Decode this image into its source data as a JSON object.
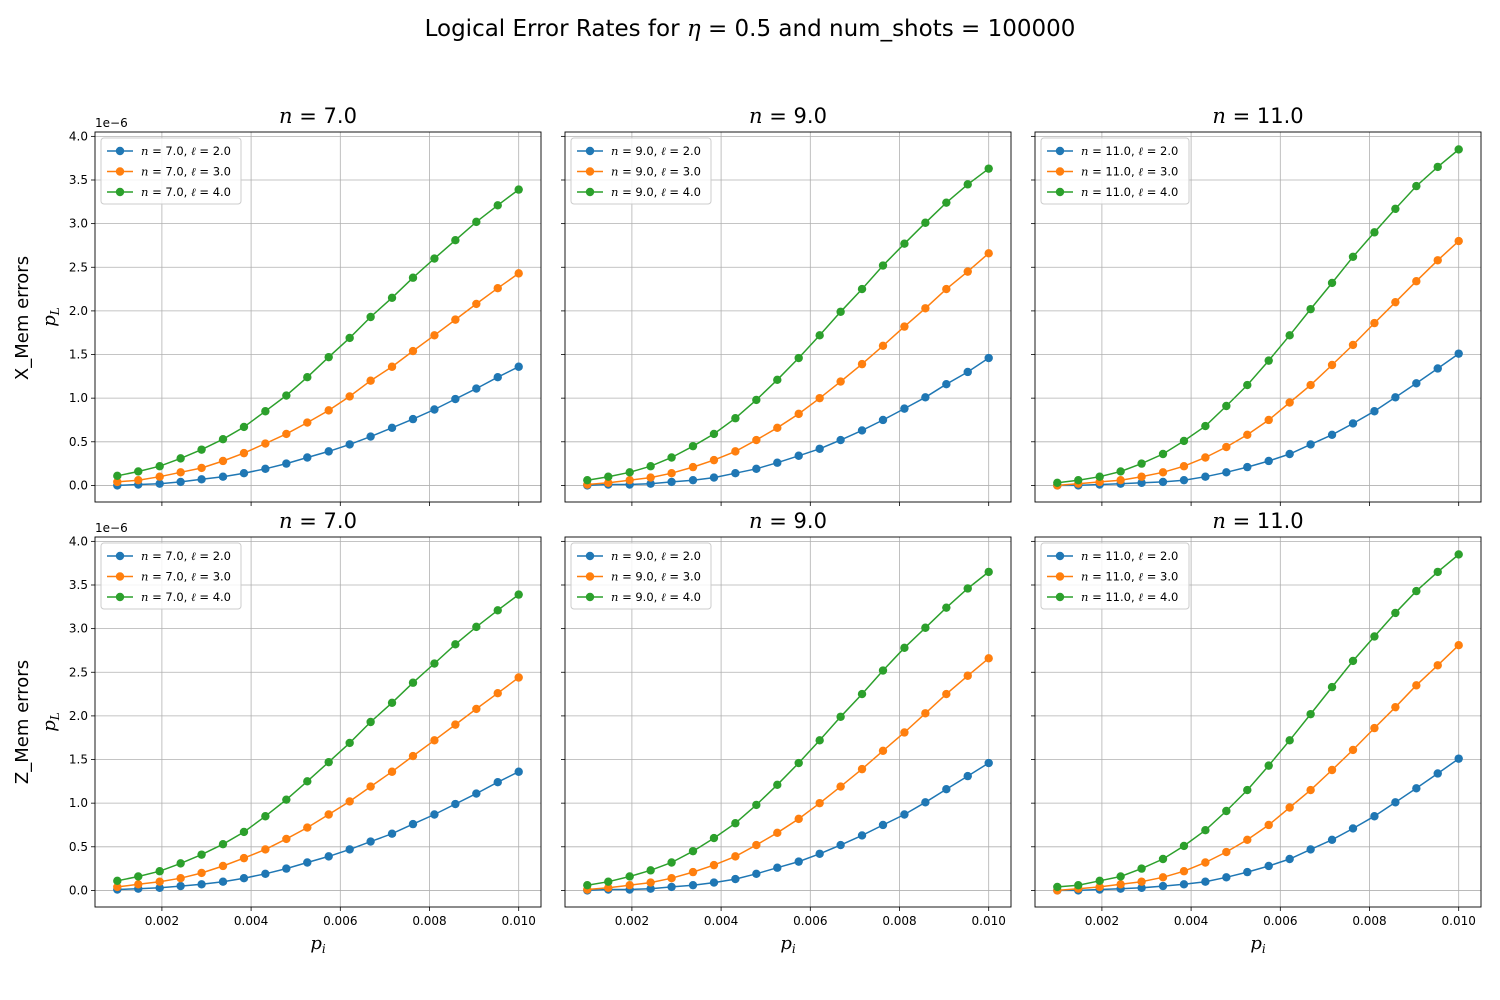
{
  "figure": {
    "title": {
      "prefix": "Logical Error Rates for ",
      "eta_symbol": "η",
      "eta_value": " = 0.5",
      "suffix": " and num_shots = 100000"
    },
    "row_labels": [
      "X_Mem errors",
      "Z_Mem errors"
    ],
    "colors": {
      "l2": "#1f77b4",
      "l3": "#ff7f0e",
      "l4": "#2ca02c",
      "grid": "#b0b0b0"
    }
  },
  "chart_data": [
    {
      "type": "line",
      "row": "X_Mem errors",
      "title_var": "n",
      "title_value": "7.0",
      "xlabel": "p_i",
      "ylabel": "p_L",
      "y_offset_text": "1e−6",
      "xlim": [
        0.0005,
        0.0105
      ],
      "ylim": [
        -0.19,
        4.05
      ],
      "xticks": [
        "0.002",
        "0.004",
        "0.006",
        "0.008",
        "0.010"
      ],
      "yticks": [
        "0.0",
        "0.5",
        "1.0",
        "1.5",
        "2.0",
        "2.5",
        "3.0",
        "3.5",
        "4.0"
      ],
      "grid": true,
      "legend_position": "upper-left",
      "x": [
        0.001,
        0.00147,
        0.00195,
        0.00242,
        0.00289,
        0.00337,
        0.00384,
        0.00432,
        0.00479,
        0.00526,
        0.00574,
        0.00621,
        0.00668,
        0.00716,
        0.00763,
        0.00811,
        0.00858,
        0.00905,
        0.00953,
        0.01
      ],
      "series": [
        {
          "n": "7.0",
          "l": "2.0",
          "values": [
            0.0,
            0.01,
            0.02,
            0.04,
            0.07,
            0.1,
            0.14,
            0.19,
            0.25,
            0.32,
            0.39,
            0.47,
            0.56,
            0.66,
            0.76,
            0.87,
            0.99,
            1.11,
            1.24,
            1.36
          ]
        },
        {
          "n": "7.0",
          "l": "3.0",
          "values": [
            0.04,
            0.06,
            0.1,
            0.15,
            0.2,
            0.28,
            0.37,
            0.48,
            0.59,
            0.72,
            0.86,
            1.02,
            1.2,
            1.36,
            1.54,
            1.72,
            1.9,
            2.08,
            2.26,
            2.43
          ]
        },
        {
          "n": "7.0",
          "l": "4.0",
          "values": [
            0.11,
            0.16,
            0.22,
            0.31,
            0.41,
            0.53,
            0.67,
            0.85,
            1.03,
            1.24,
            1.47,
            1.69,
            1.93,
            2.15,
            2.38,
            2.6,
            2.81,
            3.02,
            3.21,
            3.39
          ]
        }
      ]
    },
    {
      "type": "line",
      "row": "X_Mem errors",
      "title_var": "n",
      "title_value": "9.0",
      "xlabel": "p_i",
      "ylabel": "p_L",
      "xlim": [
        0.0005,
        0.0105
      ],
      "ylim": [
        -0.19,
        4.05
      ],
      "xticks": [
        "0.002",
        "0.004",
        "0.006",
        "0.008",
        "0.010"
      ],
      "grid": true,
      "legend_position": "upper-left",
      "x": [
        0.001,
        0.00147,
        0.00195,
        0.00242,
        0.00289,
        0.00337,
        0.00384,
        0.00432,
        0.00479,
        0.00526,
        0.00574,
        0.00621,
        0.00668,
        0.00716,
        0.00763,
        0.00811,
        0.00858,
        0.00905,
        0.00953,
        0.01
      ],
      "series": [
        {
          "n": "9.0",
          "l": "2.0",
          "values": [
            0.0,
            0.01,
            0.01,
            0.02,
            0.04,
            0.06,
            0.09,
            0.14,
            0.19,
            0.26,
            0.34,
            0.42,
            0.52,
            0.63,
            0.75,
            0.88,
            1.01,
            1.16,
            1.3,
            1.46
          ]
        },
        {
          "n": "9.0",
          "l": "3.0",
          "values": [
            0.01,
            0.03,
            0.06,
            0.09,
            0.14,
            0.21,
            0.29,
            0.39,
            0.52,
            0.66,
            0.82,
            1.0,
            1.19,
            1.39,
            1.6,
            1.82,
            2.03,
            2.25,
            2.45,
            2.66
          ]
        },
        {
          "n": "9.0",
          "l": "4.0",
          "values": [
            0.06,
            0.1,
            0.15,
            0.22,
            0.32,
            0.45,
            0.59,
            0.77,
            0.98,
            1.21,
            1.46,
            1.72,
            1.99,
            2.25,
            2.52,
            2.77,
            3.01,
            3.24,
            3.45,
            3.63
          ]
        }
      ]
    },
    {
      "type": "line",
      "row": "X_Mem errors",
      "title_var": "n",
      "title_value": "11.0",
      "xlabel": "p_i",
      "ylabel": "p_L",
      "xlim": [
        0.0005,
        0.0105
      ],
      "ylim": [
        -0.19,
        4.05
      ],
      "xticks": [
        "0.002",
        "0.004",
        "0.006",
        "0.008",
        "0.010"
      ],
      "grid": true,
      "legend_position": "upper-left",
      "x": [
        0.001,
        0.00147,
        0.00195,
        0.00242,
        0.00289,
        0.00337,
        0.00384,
        0.00432,
        0.00479,
        0.00526,
        0.00574,
        0.00621,
        0.00668,
        0.00716,
        0.00763,
        0.00811,
        0.00858,
        0.00905,
        0.00953,
        0.01
      ],
      "series": [
        {
          "n": "11.0",
          "l": "2.0",
          "values": [
            0.0,
            0.0,
            0.01,
            0.02,
            0.03,
            0.04,
            0.06,
            0.1,
            0.15,
            0.21,
            0.28,
            0.36,
            0.47,
            0.58,
            0.71,
            0.85,
            1.01,
            1.17,
            1.34,
            1.51
          ]
        },
        {
          "n": "11.0",
          "l": "3.0",
          "values": [
            0.0,
            0.02,
            0.04,
            0.06,
            0.1,
            0.15,
            0.22,
            0.32,
            0.44,
            0.58,
            0.75,
            0.95,
            1.15,
            1.38,
            1.61,
            1.86,
            2.1,
            2.34,
            2.58,
            2.8
          ]
        },
        {
          "n": "11.0",
          "l": "4.0",
          "values": [
            0.03,
            0.06,
            0.1,
            0.16,
            0.25,
            0.36,
            0.51,
            0.68,
            0.91,
            1.15,
            1.43,
            1.72,
            2.02,
            2.32,
            2.62,
            2.9,
            3.17,
            3.43,
            3.65,
            3.85
          ]
        }
      ]
    },
    {
      "type": "line",
      "row": "Z_Mem errors",
      "title_var": "n",
      "title_value": "7.0",
      "xlabel": "p_i",
      "ylabel": "p_L",
      "y_offset_text": "1e−6",
      "xlim": [
        0.0005,
        0.0105
      ],
      "ylim": [
        -0.19,
        4.05
      ],
      "xticks": [
        "0.002",
        "0.004",
        "0.006",
        "0.008",
        "0.010"
      ],
      "yticks": [
        "0.0",
        "0.5",
        "1.0",
        "1.5",
        "2.0",
        "2.5",
        "3.0",
        "3.5",
        "4.0"
      ],
      "grid": true,
      "legend_position": "upper-left",
      "x": [
        0.001,
        0.00147,
        0.00195,
        0.00242,
        0.00289,
        0.00337,
        0.00384,
        0.00432,
        0.00479,
        0.00526,
        0.00574,
        0.00621,
        0.00668,
        0.00716,
        0.00763,
        0.00811,
        0.00858,
        0.00905,
        0.00953,
        0.01
      ],
      "series": [
        {
          "n": "7.0",
          "l": "2.0",
          "values": [
            0.01,
            0.02,
            0.03,
            0.05,
            0.07,
            0.1,
            0.14,
            0.19,
            0.25,
            0.32,
            0.39,
            0.47,
            0.56,
            0.65,
            0.76,
            0.87,
            0.99,
            1.11,
            1.24,
            1.36
          ]
        },
        {
          "n": "7.0",
          "l": "3.0",
          "values": [
            0.04,
            0.07,
            0.1,
            0.14,
            0.2,
            0.28,
            0.37,
            0.47,
            0.59,
            0.72,
            0.87,
            1.02,
            1.19,
            1.36,
            1.54,
            1.72,
            1.9,
            2.08,
            2.26,
            2.44
          ]
        },
        {
          "n": "7.0",
          "l": "4.0",
          "values": [
            0.11,
            0.16,
            0.22,
            0.31,
            0.41,
            0.53,
            0.67,
            0.85,
            1.04,
            1.25,
            1.47,
            1.69,
            1.93,
            2.15,
            2.38,
            2.6,
            2.82,
            3.02,
            3.21,
            3.39
          ]
        }
      ]
    },
    {
      "type": "line",
      "row": "Z_Mem errors",
      "title_var": "n",
      "title_value": "9.0",
      "xlabel": "p_i",
      "ylabel": "p_L",
      "xlim": [
        0.0005,
        0.0105
      ],
      "ylim": [
        -0.19,
        4.05
      ],
      "xticks": [
        "0.002",
        "0.004",
        "0.006",
        "0.008",
        "0.010"
      ],
      "grid": true,
      "legend_position": "upper-left",
      "x": [
        0.001,
        0.00147,
        0.00195,
        0.00242,
        0.00289,
        0.00337,
        0.00384,
        0.00432,
        0.00479,
        0.00526,
        0.00574,
        0.00621,
        0.00668,
        0.00716,
        0.00763,
        0.00811,
        0.00858,
        0.00905,
        0.00953,
        0.01
      ],
      "series": [
        {
          "n": "9.0",
          "l": "2.0",
          "values": [
            0.0,
            0.01,
            0.01,
            0.02,
            0.04,
            0.06,
            0.09,
            0.13,
            0.19,
            0.26,
            0.33,
            0.42,
            0.52,
            0.63,
            0.75,
            0.87,
            1.01,
            1.16,
            1.31,
            1.46
          ]
        },
        {
          "n": "9.0",
          "l": "3.0",
          "values": [
            0.01,
            0.03,
            0.06,
            0.09,
            0.14,
            0.21,
            0.29,
            0.39,
            0.52,
            0.66,
            0.82,
            1.0,
            1.19,
            1.39,
            1.6,
            1.81,
            2.03,
            2.25,
            2.46,
            2.66
          ]
        },
        {
          "n": "9.0",
          "l": "4.0",
          "values": [
            0.06,
            0.1,
            0.16,
            0.23,
            0.32,
            0.45,
            0.6,
            0.77,
            0.98,
            1.21,
            1.46,
            1.72,
            1.99,
            2.25,
            2.52,
            2.78,
            3.01,
            3.24,
            3.46,
            3.65
          ]
        }
      ]
    },
    {
      "type": "line",
      "row": "Z_Mem errors",
      "title_var": "n",
      "title_value": "11.0",
      "xlabel": "p_i",
      "ylabel": "p_L",
      "xlim": [
        0.0005,
        0.0105
      ],
      "ylim": [
        -0.19,
        4.05
      ],
      "xticks": [
        "0.002",
        "0.004",
        "0.006",
        "0.008",
        "0.010"
      ],
      "grid": true,
      "legend_position": "upper-left",
      "x": [
        0.001,
        0.00147,
        0.00195,
        0.00242,
        0.00289,
        0.00337,
        0.00384,
        0.00432,
        0.00479,
        0.00526,
        0.00574,
        0.00621,
        0.00668,
        0.00716,
        0.00763,
        0.00811,
        0.00858,
        0.00905,
        0.00953,
        0.01
      ],
      "series": [
        {
          "n": "11.0",
          "l": "2.0",
          "values": [
            0.0,
            0.0,
            0.01,
            0.02,
            0.03,
            0.05,
            0.07,
            0.1,
            0.15,
            0.21,
            0.28,
            0.36,
            0.47,
            0.58,
            0.71,
            0.85,
            1.01,
            1.17,
            1.34,
            1.51
          ]
        },
        {
          "n": "11.0",
          "l": "3.0",
          "values": [
            0.0,
            0.02,
            0.04,
            0.07,
            0.1,
            0.15,
            0.22,
            0.32,
            0.44,
            0.58,
            0.75,
            0.95,
            1.15,
            1.38,
            1.61,
            1.86,
            2.1,
            2.35,
            2.58,
            2.81
          ]
        },
        {
          "n": "11.0",
          "l": "4.0",
          "values": [
            0.04,
            0.06,
            0.11,
            0.16,
            0.25,
            0.36,
            0.51,
            0.69,
            0.91,
            1.15,
            1.43,
            1.72,
            2.02,
            2.33,
            2.63,
            2.91,
            3.18,
            3.43,
            3.65,
            3.85
          ]
        }
      ]
    }
  ]
}
